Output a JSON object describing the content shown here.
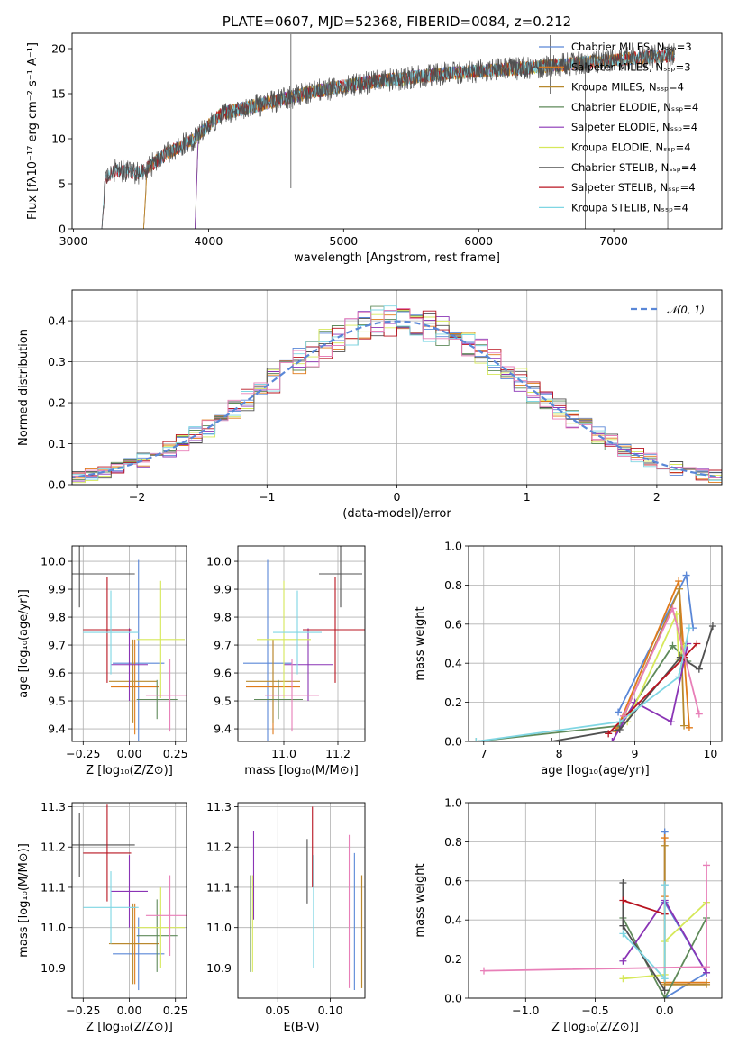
{
  "colors": {
    "palette": [
      "#5a87d7",
      "#e07b1a",
      "#b8892e",
      "#5f8a5a",
      "#8a34b5",
      "#d6e85a",
      "#505050",
      "#b81420",
      "#7fd6e3",
      "#e87fb8",
      "#b09040"
    ],
    "grid": "#b0b0b0"
  },
  "chart_data": [
    {
      "id": "spectrum",
      "type": "line",
      "title": "PLATE=0607, MJD=52368, FIBERID=0084, z=0.212",
      "xlabel": "wavelength [Angstrom, rest frame]",
      "ylabel": "Flux [fλ10⁻¹⁷ erg cm⁻² s⁻¹ A⁻¹]",
      "xlim": [
        2990,
        7800
      ],
      "ylim": [
        0,
        21.7
      ],
      "xticks": [
        3000,
        4000,
        5000,
        6000,
        7000
      ],
      "yticks": [
        0,
        5,
        10,
        15,
        20
      ],
      "grid": false,
      "legend_position": "top-right",
      "series": [
        {
          "name": "Chabrier MILES, Nₛₛₚ=3",
          "start": 3520,
          "end": 7450
        },
        {
          "name": "Salpeter MILES, Nₛₛₚ=3",
          "start": 3520,
          "end": 7450
        },
        {
          "name": "Kroupa MILES, Nₛₛₚ=4",
          "start": 3520,
          "end": 7450
        },
        {
          "name": "Chabrier ELODIE, Nₛₛₚ=4",
          "start": 3900,
          "end": 6800
        },
        {
          "name": "Salpeter ELODIE, Nₛₛₚ=4",
          "start": 3900,
          "end": 6800
        },
        {
          "name": "Kroupa ELODIE, Nₛₛₚ=4",
          "start": 3900,
          "end": 6800
        },
        {
          "name": "Chabrier STELIB, Nₛₛₚ=4",
          "start": 3210,
          "end": 7450
        },
        {
          "name": "Salpeter STELIB, Nₛₛₚ=4",
          "start": 3210,
          "end": 7450
        },
        {
          "name": "Kroupa STELIB, Nₛₛₚ=4",
          "start": 3210,
          "end": 7450
        }
      ],
      "continuum": {
        "x": [
          3210,
          3300,
          3500,
          3700,
          3900,
          4000,
          4100,
          4300,
          4500,
          4800,
          5000,
          5200,
          5500,
          5800,
          6000,
          6300,
          6600,
          6900,
          7200,
          7450
        ],
        "y": [
          4.8,
          6.5,
          6.2,
          8.5,
          10.0,
          11.5,
          12.8,
          13.5,
          14.2,
          15.3,
          15.8,
          16.3,
          16.8,
          17.3,
          17.5,
          17.8,
          18.2,
          18.6,
          19.0,
          19.3
        ]
      }
    },
    {
      "id": "residuals",
      "type": "bar",
      "xlabel": "(data-model)/error",
      "ylabel": "Normed distribution",
      "xlim": [
        -2.5,
        2.5
      ],
      "ylim": [
        0,
        0.475
      ],
      "xticks": [
        -2,
        -1,
        0,
        1,
        2
      ],
      "yticks": [
        0.0,
        0.1,
        0.2,
        0.3,
        0.4
      ],
      "grid": true,
      "legend_position": "top-right",
      "legend": "𝒩(0, 1)",
      "bin_width": 0.1,
      "histogram_count": 9
    },
    {
      "id": "age-vs-Z",
      "type": "scatter",
      "xlabel": "Z [log₁₀(Z/Z⊙)]",
      "ylabel": "age  [log₁₀(age/yr)]",
      "xlim": [
        -0.31,
        0.31
      ],
      "ylim": [
        9.355,
        10.055
      ],
      "xticks": [
        -0.25,
        0.0,
        0.25
      ],
      "yticks": [
        9.4,
        9.5,
        9.6,
        9.7,
        9.8,
        9.9,
        10.0
      ],
      "grid": true,
      "points": [
        {
          "c": 0,
          "x": 0.05,
          "xerr": 0.14,
          "y": 9.635,
          "yerr": 0.37
        },
        {
          "c": 1,
          "x": 0.03,
          "xerr": 0.13,
          "y": 9.55,
          "yerr": 0.17
        },
        {
          "c": 2,
          "x": 0.02,
          "xerr": 0.13,
          "y": 9.57,
          "yerr": 0.15
        },
        {
          "c": 3,
          "x": 0.15,
          "xerr": 0.11,
          "y": 9.505,
          "yerr": 0.07
        },
        {
          "c": 4,
          "x": 0.0,
          "xerr": 0.1,
          "y": 9.63,
          "yerr": 0.13
        },
        {
          "c": 5,
          "x": 0.17,
          "xerr": 0.13,
          "y": 9.72,
          "yerr": 0.21
        },
        {
          "c": 6,
          "x": -0.27,
          "xerr": 0.3,
          "y": 9.955,
          "yerr": 0.12
        },
        {
          "c": 7,
          "x": -0.12,
          "xerr": 0.13,
          "y": 9.755,
          "yerr": 0.19
        },
        {
          "c": 8,
          "x": -0.1,
          "xerr": 0.15,
          "y": 9.745,
          "yerr": 0.15
        },
        {
          "c": 9,
          "x": 0.22,
          "xerr": 0.13,
          "y": 9.52,
          "yerr": 0.13
        }
      ]
    },
    {
      "id": "age-vs-mass",
      "type": "scatter",
      "xlabel": "mass [log₁₀(M/M⊙)]",
      "ylabel": "",
      "xlim": [
        10.83,
        11.3
      ],
      "ylim": [
        9.355,
        10.055
      ],
      "xticks": [
        11.0,
        11.2
      ],
      "yticks": [
        9.4,
        9.5,
        9.6,
        9.7,
        9.8,
        9.9,
        10.0
      ],
      "grid": true,
      "points": [
        {
          "c": 0,
          "x": 10.94,
          "xerr": 0.09,
          "y": 9.635,
          "yerr": 0.37
        },
        {
          "c": 1,
          "x": 10.96,
          "xerr": 0.1,
          "y": 9.55,
          "yerr": 0.17
        },
        {
          "c": 2,
          "x": 10.96,
          "xerr": 0.1,
          "y": 9.57,
          "yerr": 0.15
        },
        {
          "c": 3,
          "x": 10.98,
          "xerr": 0.09,
          "y": 9.505,
          "yerr": 0.07
        },
        {
          "c": 4,
          "x": 11.09,
          "xerr": 0.09,
          "y": 9.63,
          "yerr": 0.13
        },
        {
          "c": 5,
          "x": 11.0,
          "xerr": 0.1,
          "y": 9.72,
          "yerr": 0.21
        },
        {
          "c": 6,
          "x": 11.21,
          "xerr": 0.08,
          "y": 9.955,
          "yerr": 0.12
        },
        {
          "c": 7,
          "x": 11.19,
          "xerr": 0.12,
          "y": 9.755,
          "yerr": 0.19
        },
        {
          "c": 8,
          "x": 11.05,
          "xerr": 0.09,
          "y": 9.745,
          "yerr": 0.15
        },
        {
          "c": 9,
          "x": 11.03,
          "xerr": 0.1,
          "y": 9.52,
          "yerr": 0.13
        }
      ]
    },
    {
      "id": "weight-vs-age",
      "type": "line",
      "xlabel": "age  [log₁₀(age/yr)]",
      "ylabel": "mass weight",
      "xlim": [
        6.8,
        10.15
      ],
      "ylim": [
        0,
        1.0
      ],
      "xticks": [
        7,
        8,
        9,
        10
      ],
      "yticks": [
        0.0,
        0.2,
        0.4,
        0.6,
        0.8,
        1.0
      ],
      "grid": true,
      "series": [
        {
          "c": 0,
          "x": [
            8.78,
            9.68,
            9.77
          ],
          "y": [
            0.15,
            0.85,
            0.58
          ]
        },
        {
          "c": 1,
          "x": [
            8.75,
            9.58,
            9.72
          ],
          "y": [
            0.05,
            0.82,
            0.07
          ]
        },
        {
          "c": 2,
          "x": [
            8.79,
            9.59,
            9.65
          ],
          "y": [
            0.07,
            0.78,
            0.08
          ]
        },
        {
          "c": 3,
          "x": [
            6.9,
            8.8,
            9.5,
            9.7
          ],
          "y": [
            0.0,
            0.08,
            0.49,
            0.41
          ]
        },
        {
          "c": 4,
          "x": [
            8.7,
            9.0,
            9.48,
            9.7
          ],
          "y": [
            0.0,
            0.2,
            0.1,
            0.5
          ]
        },
        {
          "c": 5,
          "x": [
            8.9,
            9.55,
            9.58,
            9.65
          ],
          "y": [
            0.1,
            0.65,
            0.42,
            0.49
          ]
        },
        {
          "c": 6,
          "x": [
            7.9,
            8.8,
            9.6,
            9.85,
            10.03
          ],
          "y": [
            0.0,
            0.06,
            0.43,
            0.37,
            0.59
          ]
        },
        {
          "c": 7,
          "x": [
            8.65,
            9.65,
            9.82
          ],
          "y": [
            0.04,
            0.43,
            0.5
          ]
        },
        {
          "c": 8,
          "x": [
            6.9,
            8.8,
            9.58,
            9.72
          ],
          "y": [
            0.0,
            0.1,
            0.33,
            0.58
          ]
        },
        {
          "c": 9,
          "x": [
            8.85,
            9.5,
            9.85
          ],
          "y": [
            0.13,
            0.68,
            0.14
          ]
        }
      ]
    },
    {
      "id": "mass-vs-Z",
      "type": "scatter",
      "xlabel": "Z [log₁₀(Z/Z⊙)]",
      "ylabel": "mass [log₁₀(M/M⊙)]",
      "xlim": [
        -0.31,
        0.31
      ],
      "ylim": [
        10.825,
        11.31
      ],
      "xticks": [
        -0.25,
        0.0,
        0.25
      ],
      "yticks": [
        10.9,
        11.0,
        11.1,
        11.2,
        11.3
      ],
      "grid": true,
      "points": [
        {
          "c": 0,
          "x": 0.05,
          "xerr": 0.14,
          "y": 10.935,
          "yerr": 0.09
        },
        {
          "c": 1,
          "x": 0.03,
          "xerr": 0.13,
          "y": 10.96,
          "yerr": 0.1
        },
        {
          "c": 2,
          "x": 0.02,
          "xerr": 0.13,
          "y": 10.96,
          "yerr": 0.1
        },
        {
          "c": 3,
          "x": 0.15,
          "xerr": 0.11,
          "y": 10.98,
          "yerr": 0.09
        },
        {
          "c": 4,
          "x": 0.0,
          "xerr": 0.1,
          "y": 11.09,
          "yerr": 0.09
        },
        {
          "c": 5,
          "x": 0.17,
          "xerr": 0.13,
          "y": 11.0,
          "yerr": 0.1
        },
        {
          "c": 6,
          "x": -0.27,
          "xerr": 0.3,
          "y": 11.205,
          "yerr": 0.08
        },
        {
          "c": 7,
          "x": -0.12,
          "xerr": 0.13,
          "y": 11.185,
          "yerr": 0.12
        },
        {
          "c": 8,
          "x": -0.1,
          "xerr": 0.15,
          "y": 11.05,
          "yerr": 0.09
        },
        {
          "c": 9,
          "x": 0.22,
          "xerr": 0.13,
          "y": 11.03,
          "yerr": 0.1
        }
      ]
    },
    {
      "id": "mass-vs-EBV",
      "type": "scatter",
      "xlabel": "E(B-V)",
      "ylabel": "",
      "xlim": [
        0.012,
        0.133
      ],
      "ylim": [
        10.825,
        11.31
      ],
      "xticks": [
        0.05,
        0.1
      ],
      "xtick_labels": [
        "0.05",
        "0.10"
      ],
      "yticks": [
        10.9,
        11.0,
        11.1,
        11.2,
        11.3
      ],
      "grid": true,
      "points": [
        {
          "c": 0,
          "x": 0.123,
          "y": 11.015,
          "yerr": 0.17
        },
        {
          "c": 1,
          "x": 0.13,
          "y": 10.99,
          "yerr": 0.14
        },
        {
          "c": 2,
          "x": 0.13,
          "y": 10.99,
          "yerr": 0.14
        },
        {
          "c": 3,
          "x": 0.024,
          "y": 11.01,
          "yerr": 0.12
        },
        {
          "c": 4,
          "x": 0.027,
          "y": 11.13,
          "yerr": 0.11
        },
        {
          "c": 5,
          "x": 0.026,
          "y": 11.01,
          "yerr": 0.12
        },
        {
          "c": 6,
          "x": 0.078,
          "y": 11.14,
          "yerr": 0.08
        },
        {
          "c": 7,
          "x": 0.083,
          "y": 11.2,
          "yerr": 0.1
        },
        {
          "c": 8,
          "x": 0.084,
          "y": 11.04,
          "yerr": 0.14
        },
        {
          "c": 9,
          "x": 0.118,
          "y": 11.04,
          "yerr": 0.19
        }
      ]
    },
    {
      "id": "weight-vs-Z",
      "type": "line",
      "xlabel": "Z [log₁₀(Z/Z⊙)]",
      "ylabel": "mass weight",
      "xlim": [
        -1.41,
        0.41
      ],
      "ylim": [
        0,
        1.0
      ],
      "xticks": [
        -1.0,
        -0.5,
        0.0
      ],
      "xtick_labels": [
        "−1.0",
        "−0.5",
        "0.0"
      ],
      "yticks": [
        0.0,
        0.2,
        0.4,
        0.6,
        0.8,
        1.0
      ],
      "grid": true,
      "series": [
        {
          "c": 0,
          "x": [
            0.0,
            0.0,
            0.0,
            0.3,
            0.0
          ],
          "y": [
            0.85,
            0.58,
            0.49,
            0.13,
            0.0
          ]
        },
        {
          "c": 1,
          "x": [
            0.0,
            0.0,
            0.0,
            0.3
          ],
          "y": [
            0.82,
            0.52,
            0.08,
            0.08
          ]
        },
        {
          "c": 2,
          "x": [
            0.0,
            0.0,
            0.3
          ],
          "y": [
            0.78,
            0.07,
            0.07
          ]
        },
        {
          "c": 3,
          "x": [
            -0.3,
            0.0,
            0.3
          ],
          "y": [
            0.41,
            0.0,
            0.41
          ]
        },
        {
          "c": 4,
          "x": [
            -0.3,
            0.0,
            0.3
          ],
          "y": [
            0.19,
            0.5,
            0.13
          ]
        },
        {
          "c": 5,
          "x": [
            -0.3,
            0.0,
            0.0,
            0.3
          ],
          "y": [
            0.1,
            0.12,
            0.29,
            0.49
          ]
        },
        {
          "c": 6,
          "x": [
            -0.3,
            -0.3,
            0.0
          ],
          "y": [
            0.59,
            0.37,
            0.04
          ]
        },
        {
          "c": 7,
          "x": [
            -0.3,
            0.0
          ],
          "y": [
            0.5,
            0.43
          ]
        },
        {
          "c": 8,
          "x": [
            -0.3,
            0.0,
            0.0
          ],
          "y": [
            0.33,
            0.1,
            0.58
          ]
        },
        {
          "c": 9,
          "x": [
            -1.3,
            0.3,
            0.3
          ],
          "y": [
            0.14,
            0.16,
            0.68
          ]
        }
      ]
    }
  ]
}
